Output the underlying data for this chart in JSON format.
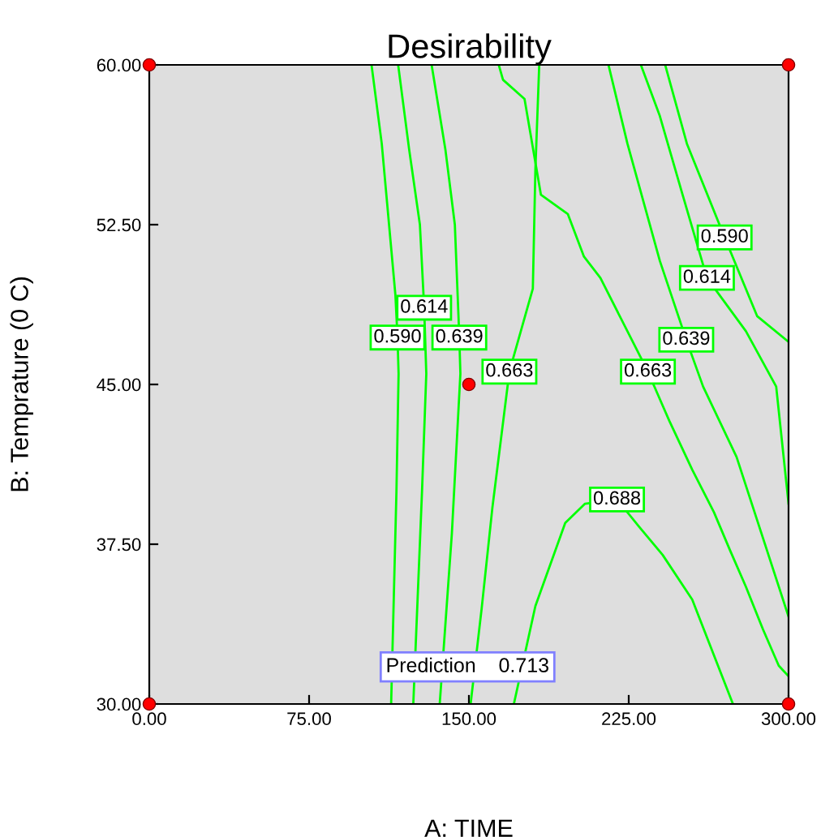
{
  "chart_data": {
    "type": "line",
    "title": "Desirability",
    "xlabel": "A: TIME",
    "ylabel": "B: Temprature (0 C)",
    "xlim": [
      0,
      300
    ],
    "ylim": [
      30,
      60
    ],
    "xticks": [
      {
        "value": 0,
        "label": "0.00"
      },
      {
        "value": 75,
        "label": "75.00"
      },
      {
        "value": 150,
        "label": "150.00"
      },
      {
        "value": 225,
        "label": "225.00"
      },
      {
        "value": 300,
        "label": "300.00"
      }
    ],
    "yticks": [
      {
        "value": 30,
        "label": "30.00"
      },
      {
        "value": 37.5,
        "label": "37.50"
      },
      {
        "value": 45,
        "label": "45.00"
      },
      {
        "value": 52.5,
        "label": "52.50"
      },
      {
        "value": 60,
        "label": "60.00"
      }
    ],
    "grid": false,
    "annotations": [
      "Prediction    0.713"
    ],
    "series": [
      {
        "name": "0.590",
        "color": "#00ff00",
        "x": [
          104.3,
          109.1,
          115.5,
          116.5,
          117,
          116,
          113.5
        ],
        "values": [
          60,
          56.3,
          49.2,
          47.2,
          45.5,
          40,
          30
        ]
      },
      {
        "name": "0.614",
        "color": "#00ff00",
        "x": [
          116.8,
          122,
          127,
          129,
          130,
          128,
          123.9
        ],
        "values": [
          60,
          56,
          52.5,
          48.6,
          45.5,
          40,
          30
        ]
      },
      {
        "name": "0.639",
        "color": "#00ff00",
        "x": [
          132.5,
          139,
          143.4,
          145.5,
          146,
          142,
          136.3
        ],
        "values": [
          60,
          56,
          52.5,
          47.2,
          45.5,
          38,
          30
        ]
      },
      {
        "name": "0.663",
        "color": "#00ff00",
        "x": [
          183,
          181.2,
          180,
          169,
          161,
          156,
          150.8
        ],
        "values": [
          60,
          55.1,
          49.5,
          45.6,
          39.2,
          34.5,
          30
        ]
      },
      {
        "name": "0.663",
        "color": "#00ff00",
        "x": [
          164,
          166,
          176.1,
          183.8,
          196.4,
          204,
          211.7,
          226.9,
          234,
          244,
          254.8,
          265,
          272.6,
          280,
          288,
          295.4,
          300
        ],
        "values": [
          60,
          59.3,
          58.4,
          53.9,
          53,
          51,
          50,
          47,
          45.6,
          43.3,
          41,
          39,
          37.2,
          35.5,
          33.5,
          31.8,
          31.3
        ]
      },
      {
        "name": "0.688",
        "color": "#00ff00",
        "x": [
          171.1,
          181.2,
          195.2,
          204.5,
          219.5,
          230,
          240.9,
          254.8,
          273.9
        ],
        "values": [
          30,
          34.6,
          38.5,
          39.4,
          39.6,
          38.3,
          37,
          34.9,
          30
        ]
      },
      {
        "name": "0.639",
        "color": "#00ff00",
        "x": [
          215.5,
          224.4,
          239.6,
          252,
          259.9,
          275.6,
          300
        ],
        "values": [
          60,
          56.3,
          50.8,
          47.1,
          44.9,
          41.6,
          34.1
        ]
      },
      {
        "name": "0.614",
        "color": "#00ff00",
        "x": [
          230.7,
          239.6,
          250,
          261.7,
          280,
          294.2,
          300
        ],
        "values": [
          60,
          57.6,
          54,
          50,
          47.5,
          44.9,
          39.4
        ]
      },
      {
        "name": "0.590",
        "color": "#00ff00",
        "x": [
          242.1,
          252.3,
          270,
          285.3,
          300
        ],
        "values": [
          60,
          56.3,
          51.9,
          48.2,
          47
        ]
      },
      {
        "type": "scatter",
        "marker": "circle",
        "color": "#ff0000",
        "x": [
          0,
          0,
          150,
          300,
          300
        ],
        "values": [
          60,
          30,
          45,
          60,
          30
        ]
      }
    ]
  }
}
